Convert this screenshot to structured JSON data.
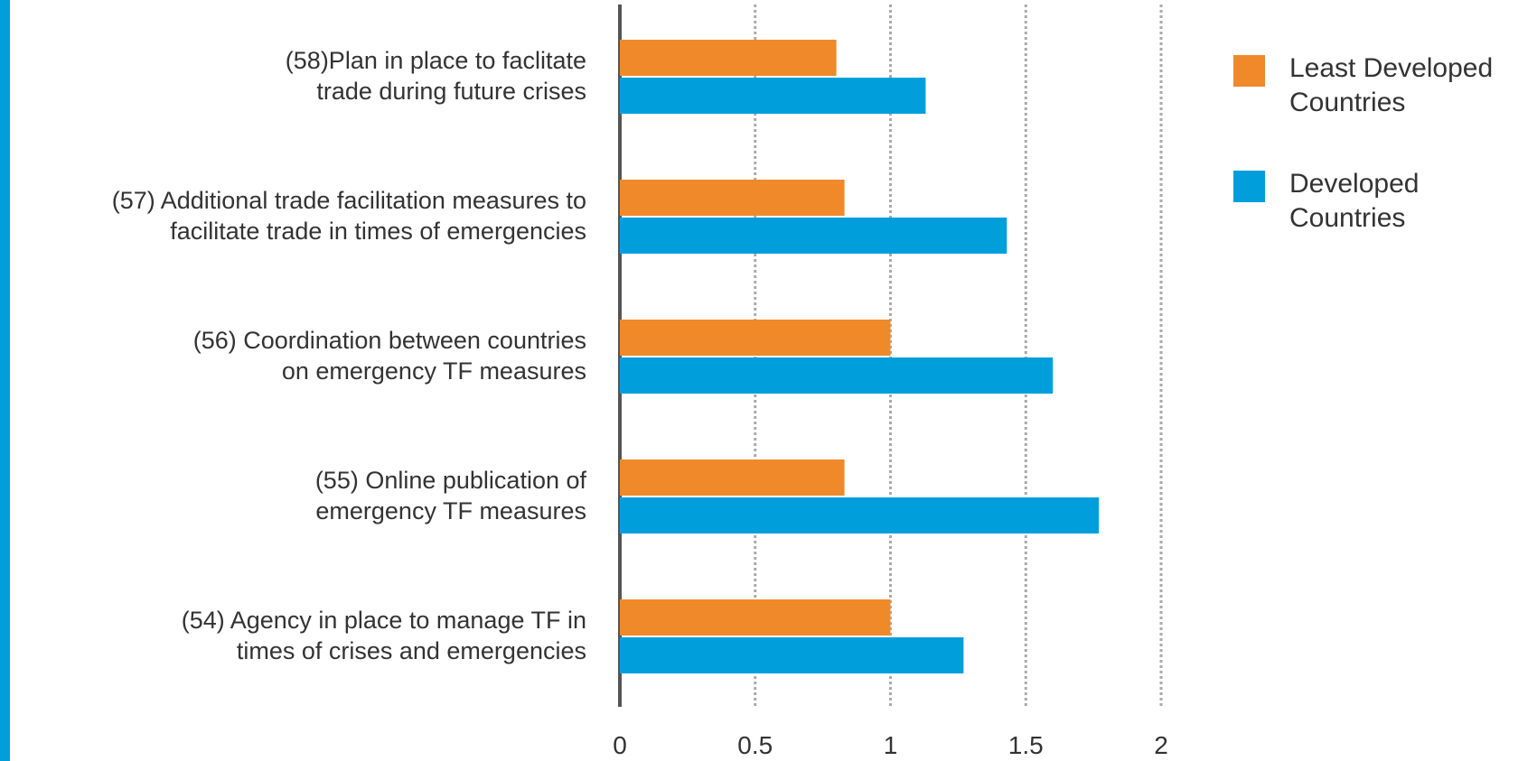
{
  "chart_data": {
    "type": "bar",
    "orientation": "horizontal",
    "categories": [
      "(58)Plan in place to faclitate\ntrade during future crises",
      "(57) Additional trade facilitation measures to\nfacilitate trade in times of emergencies",
      "(56) Coordination between countries\non emergency TF measures",
      "(55) Online publication of\nemergency TF measures",
      "(54) Agency in place to manage TF in\ntimes of crises and emergencies"
    ],
    "series": [
      {
        "name": "Least Developed\nCountries",
        "color": "#f0892a",
        "values": [
          0.8,
          0.83,
          1.0,
          0.83,
          1.0
        ]
      },
      {
        "name": "Developed\nCountries",
        "color": "#009fdc",
        "values": [
          1.13,
          1.43,
          1.6,
          1.77,
          1.27
        ]
      }
    ],
    "xlim": [
      0,
      2
    ],
    "xticks": [
      0,
      0.5,
      1,
      1.5,
      2
    ],
    "grid": true,
    "legend": "right"
  }
}
